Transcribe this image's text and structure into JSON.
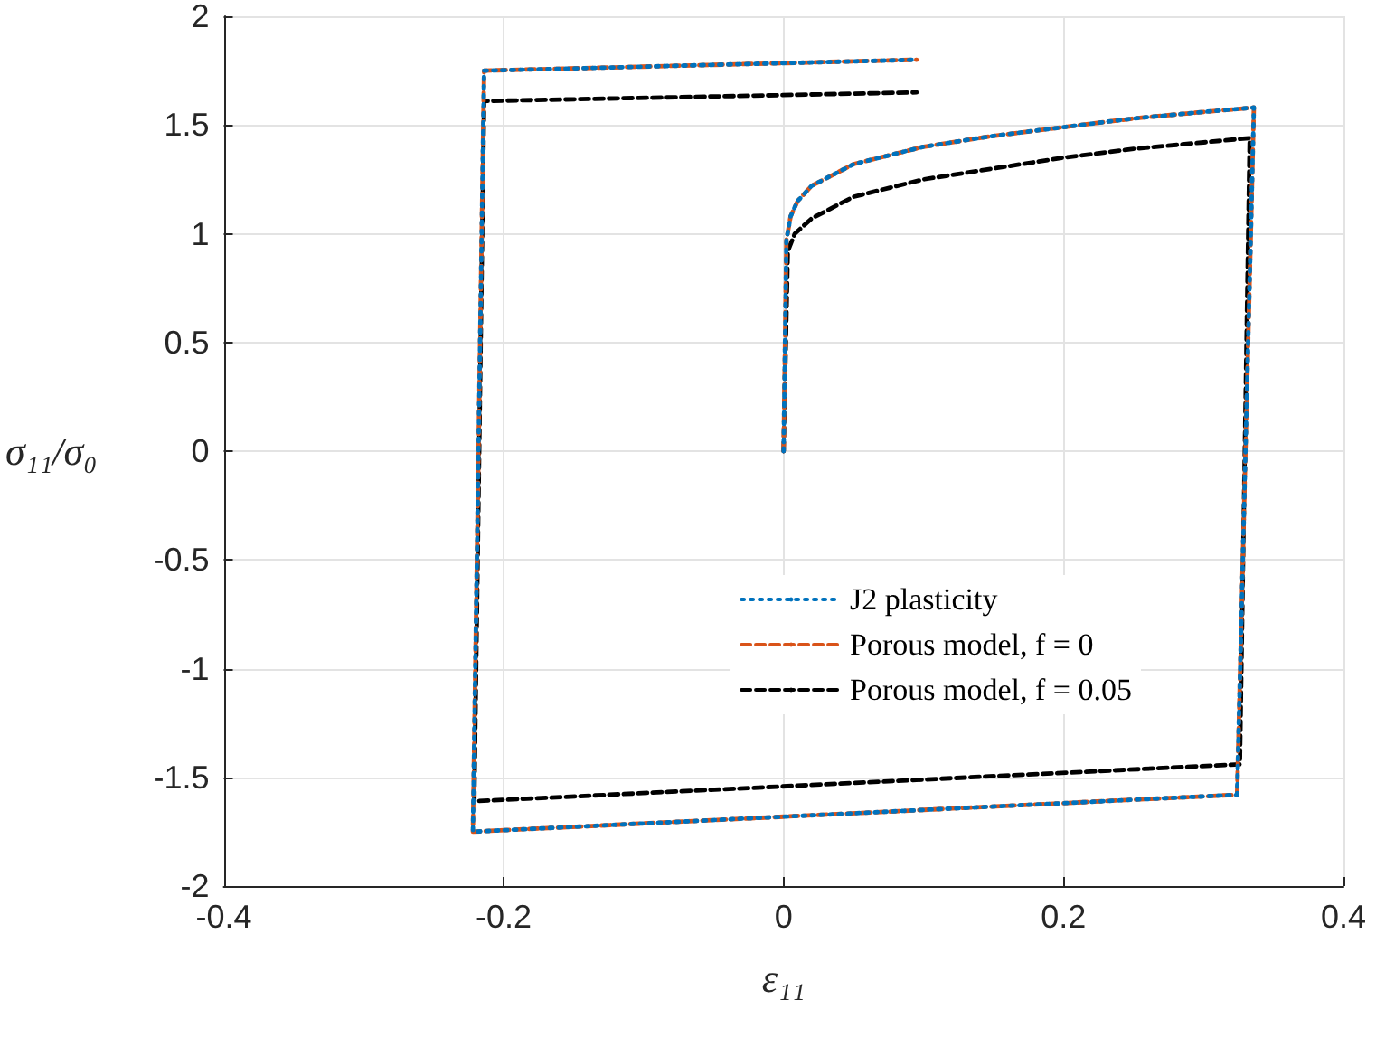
{
  "chart_data": {
    "type": "line",
    "xlabel": "ε₁₁",
    "ylabel": "σ₁₁/σ₀",
    "xlim": [
      -0.4,
      0.4
    ],
    "ylim": [
      -2,
      2
    ],
    "xticks": [
      -0.4,
      -0.2,
      0,
      0.2,
      0.4
    ],
    "yticks": [
      -2,
      -1.5,
      -1,
      -0.5,
      0,
      0.5,
      1,
      1.5,
      2
    ],
    "grid": true,
    "legend": "bottom right",
    "marker": "none",
    "series": [
      {
        "name": "J2 plasticity",
        "color": "#0072bd",
        "line_style": "dotted",
        "x": [
          0,
          0.002,
          0.005,
          0.01,
          0.02,
          0.05,
          0.1,
          0.15,
          0.2,
          0.25,
          0.3,
          0.336,
          0.324,
          -0.222,
          -0.214,
          0.095
        ],
        "values": [
          0,
          0.97,
          1.08,
          1.15,
          1.22,
          1.32,
          1.4,
          1.45,
          1.49,
          1.53,
          1.56,
          1.58,
          -1.58,
          -1.75,
          1.75,
          1.8
        ]
      },
      {
        "name": "Porous model, f = 0",
        "color": "#d95319",
        "line_style": "dashed",
        "x": [
          0,
          0.002,
          0.005,
          0.01,
          0.02,
          0.05,
          0.1,
          0.15,
          0.2,
          0.25,
          0.3,
          0.336,
          0.324,
          -0.222,
          -0.214,
          0.095
        ],
        "values": [
          0,
          0.97,
          1.08,
          1.15,
          1.22,
          1.32,
          1.4,
          1.45,
          1.49,
          1.53,
          1.56,
          1.58,
          -1.58,
          -1.75,
          1.75,
          1.8
        ]
      },
      {
        "name": "Porous model, f = 0.05",
        "color": "#000000",
        "line_style": "dashed",
        "x": [
          0,
          0.003,
          0.008,
          0.02,
          0.05,
          0.1,
          0.15,
          0.2,
          0.25,
          0.3,
          0.333,
          0.326,
          -0.221,
          -0.214,
          0.095
        ],
        "values": [
          0,
          0.92,
          1.0,
          1.07,
          1.17,
          1.25,
          1.3,
          1.35,
          1.39,
          1.42,
          1.44,
          -1.44,
          -1.61,
          1.61,
          1.65
        ]
      }
    ]
  }
}
